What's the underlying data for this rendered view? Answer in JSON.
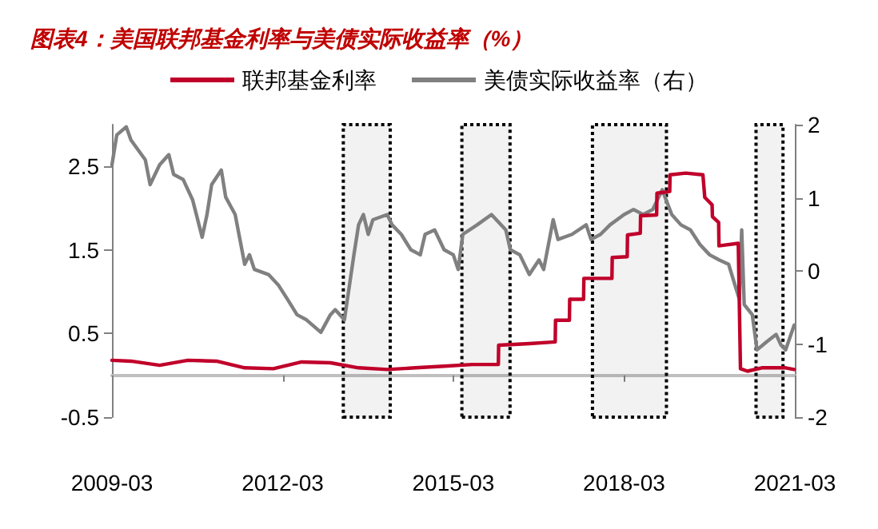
{
  "chart_data": {
    "type": "line",
    "title": "图表4：美国联邦基金利率与美债实际收益率（%）",
    "xlim": [
      "2009-03",
      "2021-03"
    ],
    "xticks": [
      "2009-03",
      "2012-03",
      "2015-03",
      "2018-03",
      "2021-03"
    ],
    "ylim": [
      -0.5,
      3.0
    ],
    "yticks": [
      -0.5,
      0.5,
      1.5,
      2.5
    ],
    "y2lim": [
      -2,
      2
    ],
    "y2ticks": [
      -2,
      -1,
      0,
      1,
      2
    ],
    "legend": "top",
    "grid": false,
    "marker": "none",
    "line_style": "solid",
    "series": [
      {
        "name": "联邦基金利率",
        "color": "#c0002a",
        "x": [
          "2009-03",
          "2009-07",
          "2010-01",
          "2010-07",
          "2011-01",
          "2011-07",
          "2012-01",
          "2012-07",
          "2013-01",
          "2013-07",
          "2014-01",
          "2014-07",
          "2015-01",
          "2015-07",
          "2015-12-15",
          "2015-12-17",
          "2016-07",
          "2016-12-14",
          "2016-12-16",
          "2017-03-15",
          "2017-03-17",
          "2017-06-14",
          "2017-06-16",
          "2017-12-13",
          "2017-12-15",
          "2018-03-21",
          "2018-03-23",
          "2018-06-13",
          "2018-06-15",
          "2018-09-26",
          "2018-09-28",
          "2018-12-19",
          "2018-12-21",
          "2019-04",
          "2019-07-20",
          "2019-08-01",
          "2019-09-17",
          "2019-09-19",
          "2019-10-29",
          "2019-10-31",
          "2020-03-03",
          "2020-03-17",
          "2020-05",
          "2020-08",
          "2021-01",
          "2021-02-25"
        ],
        "values": [
          0.18,
          0.17,
          0.12,
          0.18,
          0.17,
          0.09,
          0.08,
          0.16,
          0.15,
          0.09,
          0.07,
          0.09,
          0.11,
          0.13,
          0.13,
          0.36,
          0.38,
          0.4,
          0.66,
          0.66,
          0.91,
          0.91,
          1.16,
          1.16,
          1.41,
          1.42,
          1.68,
          1.7,
          1.91,
          1.92,
          2.18,
          2.2,
          2.4,
          2.42,
          2.4,
          2.13,
          2.04,
          1.9,
          1.83,
          1.55,
          1.58,
          0.08,
          0.05,
          0.09,
          0.09,
          0.07
        ]
      },
      {
        "name": "美债实际收益率（右）",
        "color": "#808080",
        "axis": "y2",
        "x": [
          "2009-03",
          "2009-04",
          "2009-06",
          "2009-07",
          "2009-10",
          "2009-11",
          "2010-01",
          "2010-03",
          "2010-04",
          "2010-06",
          "2010-08",
          "2010-10",
          "2010-11",
          "2010-12",
          "2011-02",
          "2011-03",
          "2011-05",
          "2011-07",
          "2011-08",
          "2011-09",
          "2011-12",
          "2012-02",
          "2012-04",
          "2012-06",
          "2012-08",
          "2012-11",
          "2013-01",
          "2013-02",
          "2013-04",
          "2013-06",
          "2013-07",
          "2013-08",
          "2013-09",
          "2013-10",
          "2014-01",
          "2014-02",
          "2014-04",
          "2014-06",
          "2014-08",
          "2014-09",
          "2014-11",
          "2015-01",
          "2015-03",
          "2015-04",
          "2015-05",
          "2015-08",
          "2015-11",
          "2016-02",
          "2016-03",
          "2016-05",
          "2016-07",
          "2016-09",
          "2016-10",
          "2016-12",
          "2017-01",
          "2017-04",
          "2017-07",
          "2017-08",
          "2017-10",
          "2017-12",
          "2018-03",
          "2018-05",
          "2018-07",
          "2018-09",
          "2018-11",
          "2019-01",
          "2019-03",
          "2019-05",
          "2019-07",
          "2019-09",
          "2019-11",
          "2020-01",
          "2020-03-10",
          "2020-03-25",
          "2020-04-10",
          "2020-06",
          "2020-07",
          "2020-09",
          "2020-11",
          "2020-12",
          "2021-01",
          "2021-02-25"
        ],
        "values": [
          1.45,
          1.86,
          1.97,
          1.79,
          1.52,
          1.18,
          1.45,
          1.59,
          1.32,
          1.25,
          0.97,
          0.46,
          0.77,
          1.18,
          1.38,
          1.01,
          0.77,
          0.09,
          0.22,
          0.02,
          -0.05,
          -0.19,
          -0.39,
          -0.6,
          -0.67,
          -0.84,
          -0.6,
          -0.53,
          -0.67,
          0.22,
          0.63,
          0.77,
          0.5,
          0.7,
          0.77,
          0.63,
          0.5,
          0.29,
          0.22,
          0.5,
          0.56,
          0.29,
          0.22,
          0.02,
          0.5,
          0.63,
          0.77,
          0.56,
          0.29,
          0.22,
          -0.05,
          0.15,
          0.02,
          0.7,
          0.43,
          0.5,
          0.63,
          0.43,
          0.5,
          0.63,
          0.77,
          0.84,
          0.77,
          0.84,
          1.11,
          0.77,
          0.63,
          0.56,
          0.36,
          0.22,
          0.15,
          0.09,
          -0.39,
          0.56,
          -0.46,
          -0.6,
          -1.08,
          -0.97,
          -0.87,
          -1.01,
          -1.08,
          -0.74
        ]
      }
    ],
    "bands": [
      {
        "axis": "x",
        "from": "2013-03-25",
        "to": "2014-01-20",
        "color": "#000000"
      },
      {
        "axis": "x",
        "from": "2015-04-25",
        "to": "2016-02-28",
        "color": "#000000"
      },
      {
        "axis": "x",
        "from": "2017-08-10",
        "to": "2018-11-28",
        "color": "#000000"
      },
      {
        "axis": "x",
        "from": "2020-06-25",
        "to": "2020-12-15",
        "color": "#000000"
      }
    ]
  }
}
